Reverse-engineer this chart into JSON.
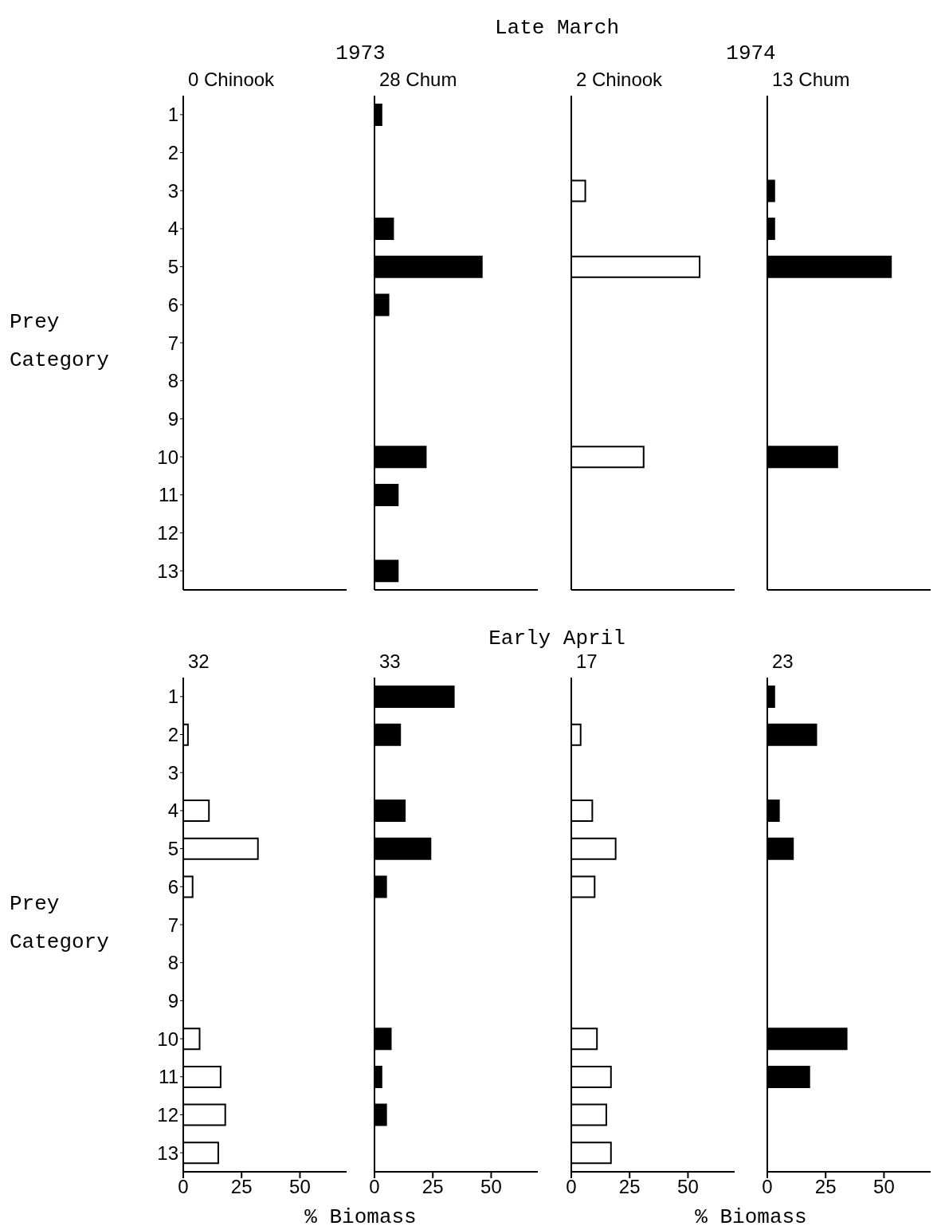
{
  "chart_data": [
    {
      "type": "bar",
      "orientation": "horizontal",
      "title": "0 Chinook",
      "subtitle": "1973",
      "annotations": [
        "Late March"
      ],
      "ylabel": "Prey Category",
      "categories": [
        "1",
        "2",
        "3",
        "4",
        "5",
        "6",
        "7",
        "8",
        "9",
        "10",
        "11",
        "12",
        "13"
      ],
      "values": [
        null,
        null,
        null,
        null,
        null,
        null,
        null,
        null,
        null,
        null,
        null,
        null,
        null
      ],
      "color": "#ffffff",
      "xlim": [
        0,
        70
      ],
      "xticks": [
        0,
        25,
        50
      ],
      "tick_labels": "y"
    },
    {
      "type": "bar",
      "orientation": "horizontal",
      "title": "28 Chum",
      "categories": [
        "1",
        "2",
        "3",
        "4",
        "5",
        "6",
        "7",
        "8",
        "9",
        "10",
        "11",
        "12",
        "13"
      ],
      "values": [
        3,
        null,
        null,
        8,
        46,
        6,
        null,
        null,
        null,
        22,
        10,
        null,
        10
      ],
      "color": "#000000",
      "xlim": [
        0,
        70
      ],
      "xticks": [
        0,
        25,
        50
      ],
      "tick_labels": false
    },
    {
      "type": "bar",
      "orientation": "horizontal",
      "title": "2 Chinook",
      "subtitle": "1974",
      "categories": [
        "1",
        "2",
        "3",
        "4",
        "5",
        "6",
        "7",
        "8",
        "9",
        "10",
        "11",
        "12",
        "13"
      ],
      "values": [
        null,
        null,
        6,
        null,
        55,
        null,
        null,
        null,
        null,
        31,
        null,
        null,
        null
      ],
      "color": "#ffffff",
      "xlim": [
        0,
        70
      ],
      "xticks": [
        0,
        25,
        50
      ],
      "tick_labels": false
    },
    {
      "type": "bar",
      "orientation": "horizontal",
      "title": "13 Chum",
      "categories": [
        "1",
        "2",
        "3",
        "4",
        "5",
        "6",
        "7",
        "8",
        "9",
        "10",
        "11",
        "12",
        "13"
      ],
      "values": [
        null,
        null,
        3,
        3,
        53,
        null,
        null,
        null,
        null,
        30,
        null,
        null,
        null
      ],
      "color": "#000000",
      "xlim": [
        0,
        70
      ],
      "xticks": [
        0,
        25,
        50
      ],
      "tick_labels": false
    },
    {
      "type": "bar",
      "orientation": "horizontal",
      "title": "32",
      "annotations": [
        "Early April"
      ],
      "ylabel": "Prey Category",
      "xlabel": "% Biomass",
      "categories": [
        "1",
        "2",
        "3",
        "4",
        "5",
        "6",
        "7",
        "8",
        "9",
        "10",
        "11",
        "12",
        "13"
      ],
      "values": [
        null,
        2,
        null,
        11,
        32,
        4,
        null,
        null,
        null,
        7,
        16,
        18,
        15
      ],
      "color": "#ffffff",
      "xlim": [
        0,
        70
      ],
      "xticks": [
        0,
        25,
        50
      ]
    },
    {
      "type": "bar",
      "orientation": "horizontal",
      "title": "33",
      "categories": [
        "1",
        "2",
        "3",
        "4",
        "5",
        "6",
        "7",
        "8",
        "9",
        "10",
        "11",
        "12",
        "13"
      ],
      "values": [
        34,
        11,
        null,
        13,
        24,
        5,
        null,
        null,
        null,
        7,
        3,
        5,
        null
      ],
      "color": "#000000",
      "xlim": [
        0,
        70
      ],
      "xticks": [
        0,
        25,
        50
      ],
      "tick_labels": "x"
    },
    {
      "type": "bar",
      "orientation": "horizontal",
      "title": "17",
      "xlabel": "% Biomass",
      "categories": [
        "1",
        "2",
        "3",
        "4",
        "5",
        "6",
        "7",
        "8",
        "9",
        "10",
        "11",
        "12",
        "13"
      ],
      "values": [
        null,
        4,
        null,
        9,
        19,
        10,
        null,
        null,
        null,
        11,
        17,
        15,
        17
      ],
      "color": "#ffffff",
      "xlim": [
        0,
        70
      ],
      "xticks": [
        0,
        25,
        50
      ],
      "tick_labels": "x"
    },
    {
      "type": "bar",
      "orientation": "horizontal",
      "title": "23",
      "categories": [
        "1",
        "2",
        "3",
        "4",
        "5",
        "6",
        "7",
        "8",
        "9",
        "10",
        "11",
        "12",
        "13"
      ],
      "values": [
        3,
        21,
        null,
        5,
        11,
        null,
        null,
        null,
        null,
        34,
        18,
        null,
        null
      ],
      "color": "#000000",
      "xlim": [
        0,
        70
      ],
      "xticks": [
        0,
        25,
        50
      ],
      "tick_labels": "x"
    }
  ]
}
